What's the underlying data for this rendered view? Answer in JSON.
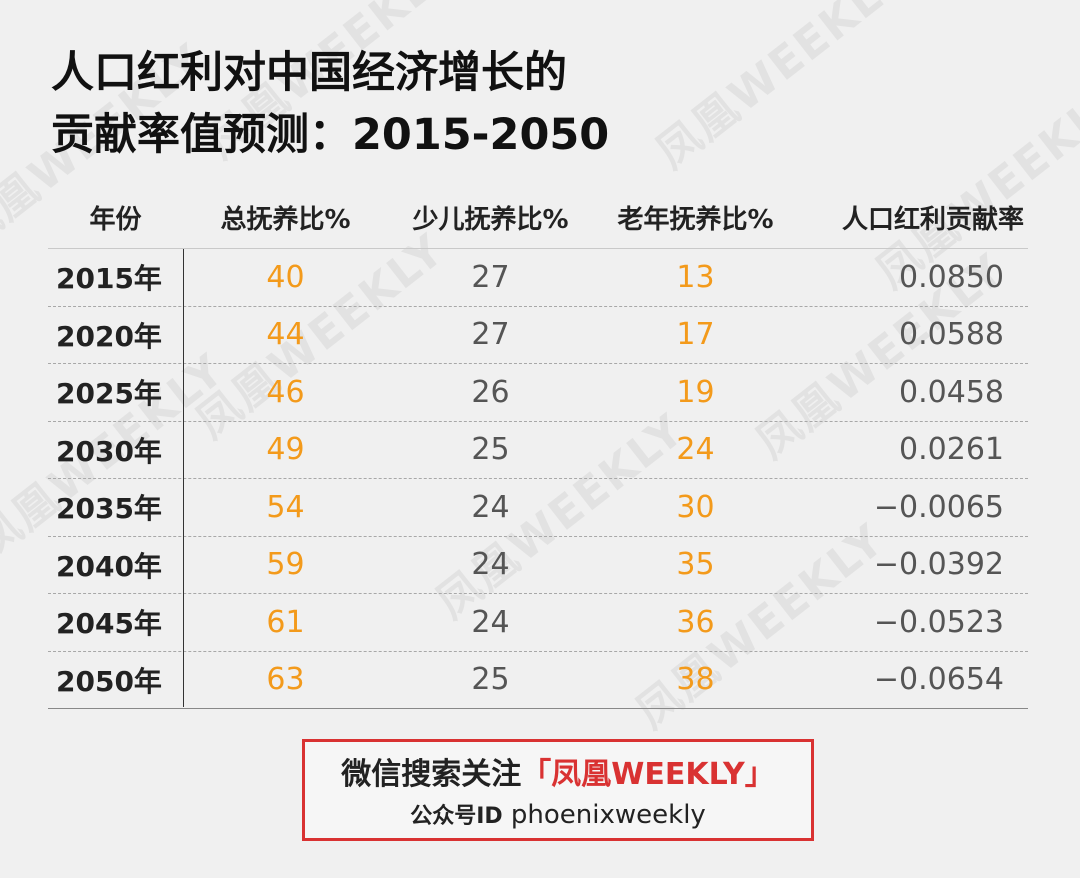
{
  "title": {
    "line1": "人口红利对中国经济增长的",
    "line2": "贡献率值预测：2015-2050"
  },
  "watermark_text": "凤凰WEEKLY",
  "table": {
    "headers": [
      "年份",
      "总抚养比%",
      "少儿抚养比%",
      "老年抚养比%",
      "人口红利贡献率"
    ],
    "rows": [
      {
        "year": "2015年",
        "total": "40",
        "child": "27",
        "elderly": "13",
        "dividend": "0.0850"
      },
      {
        "year": "2020年",
        "total": "44",
        "child": "27",
        "elderly": "17",
        "dividend": "0.0588"
      },
      {
        "year": "2025年",
        "total": "46",
        "child": "26",
        "elderly": "19",
        "dividend": "0.0458"
      },
      {
        "year": "2030年",
        "total": "49",
        "child": "25",
        "elderly": "24",
        "dividend": "0.0261"
      },
      {
        "year": "2035年",
        "total": "54",
        "child": "24",
        "elderly": "30",
        "dividend": "−0.0065"
      },
      {
        "year": "2040年",
        "total": "59",
        "child": "24",
        "elderly": "35",
        "dividend": "−0.0392"
      },
      {
        "year": "2045年",
        "total": "61",
        "child": "24",
        "elderly": "36",
        "dividend": "−0.0523"
      },
      {
        "year": "2050年",
        "total": "63",
        "child": "25",
        "elderly": "38",
        "dividend": "−0.0654"
      }
    ]
  },
  "footer": {
    "prefix": "微信搜索关注",
    "brand": "「凤凰WEEKLY」",
    "id_label": "公众号ID",
    "id_value": "phoenixweekly"
  },
  "colors": {
    "accent_orange": "#f39a1b",
    "border_red": "#d93232",
    "background": "#f0f0f0"
  }
}
